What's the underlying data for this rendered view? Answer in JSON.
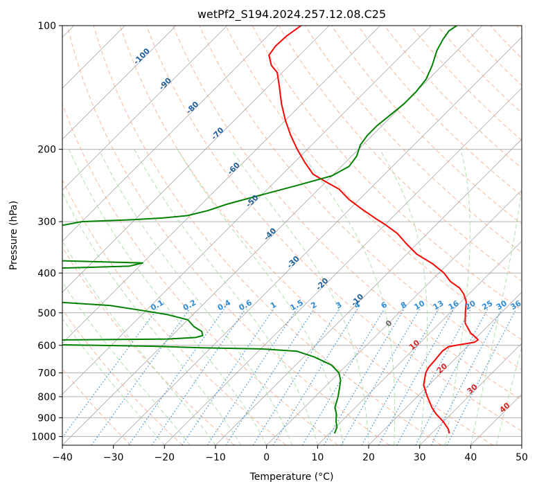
{
  "chart_data": {
    "type": "line",
    "title": "wetPf2_S194.2024.257.12.08.C25",
    "xlabel": "Temperature (°C)",
    "ylabel": "Pressure (hPa)",
    "xlim": [
      -40,
      50
    ],
    "ylim": [
      1050,
      100
    ],
    "y_scale": "log",
    "skew": "skew-T log-p (isotherms skewed 45°)",
    "grid": true,
    "x_ticks": [
      -40,
      -30,
      -20,
      -10,
      0,
      10,
      20,
      30,
      40,
      50
    ],
    "x_tick_labels": [
      "−40",
      "−30",
      "−20",
      "−10",
      "0",
      "10",
      "20",
      "30",
      "40",
      "50"
    ],
    "y_ticks": [
      1000,
      900,
      800,
      700,
      600,
      500,
      400,
      300,
      200,
      100
    ],
    "y_tick_labels": [
      "1000",
      "900",
      "800",
      "700",
      "600",
      "500",
      "400",
      "300",
      "200",
      "100"
    ],
    "colors": {
      "temperature": "#ff0000",
      "dewpoint": "#008000",
      "grid": "#b0b0b0",
      "isotherm": "#999999",
      "dry_adiabat": "#f4a582",
      "moist_adiabat": "#a1d99b",
      "mixing_ratio": "#2e8bd6",
      "dry_adiabat_label": "#1f5f99",
      "moist_adiabat_label": "#d62728",
      "saturated_label": "#666666"
    },
    "series": [
      {
        "points": [
          [
            983,
            33.5
          ],
          [
            960,
            32.5
          ],
          [
            920,
            30.0
          ],
          [
            880,
            27.0
          ],
          [
            850,
            25.0
          ],
          [
            800,
            22.0
          ],
          [
            750,
            19.0
          ],
          [
            700,
            17.0
          ],
          [
            680,
            16.5
          ],
          [
            650,
            16.3
          ],
          [
            620,
            16.0
          ],
          [
            605,
            16.3
          ],
          [
            600,
            17.5
          ],
          [
            590,
            20.5
          ],
          [
            582,
            20.8
          ],
          [
            575,
            20.0
          ],
          [
            560,
            18.0
          ],
          [
            530,
            15.0
          ],
          [
            500,
            13.0
          ],
          [
            470,
            11.0
          ],
          [
            450,
            9.0
          ],
          [
            435,
            7.0
          ],
          [
            420,
            4.0
          ],
          [
            400,
            1.0
          ],
          [
            380,
            -3.0
          ],
          [
            360,
            -8.0
          ],
          [
            340,
            -12.0
          ],
          [
            320,
            -16.0
          ],
          [
            305,
            -20.0
          ],
          [
            295,
            -23.0
          ],
          [
            280,
            -27.5
          ],
          [
            265,
            -32.0
          ],
          [
            250,
            -36.0
          ],
          [
            240,
            -40.0
          ],
          [
            230,
            -44.0
          ],
          [
            215,
            -48.0
          ],
          [
            200,
            -52.0
          ],
          [
            185,
            -56.0
          ],
          [
            170,
            -60.0
          ],
          [
            155,
            -64.0
          ],
          [
            140,
            -68.0
          ],
          [
            130,
            -71.0
          ],
          [
            125,
            -73.5
          ],
          [
            118,
            -76.0
          ],
          [
            112,
            -76.5
          ],
          [
            106,
            -76.3
          ],
          [
            100,
            -75.5
          ]
        ]
      },
      {
        "points": [
          [
            983,
            11.0
          ],
          [
            950,
            10.3
          ],
          [
            920,
            9.0
          ],
          [
            880,
            7.5
          ],
          [
            850,
            6.0
          ],
          [
            800,
            4.5
          ],
          [
            760,
            3.0
          ],
          [
            730,
            1.8
          ],
          [
            700,
            0.0
          ],
          [
            670,
            -3.0
          ],
          [
            640,
            -8.0
          ],
          [
            620,
            -12.5
          ],
          [
            612,
            -20.0
          ],
          [
            608,
            -32.0
          ],
          [
            603,
            -42.0
          ],
          [
            598,
            -60.0
          ],
          [
            592,
            -75.0
          ],
          [
            588,
            -79.0
          ],
          [
            584,
            -78.0
          ],
          [
            582,
            -60.0
          ],
          [
            579,
            -40.0
          ],
          [
            574,
            -35.0
          ],
          [
            568,
            -34.0
          ],
          [
            555,
            -35.0
          ],
          [
            540,
            -37.5
          ],
          [
            520,
            -40.0
          ],
          [
            505,
            -45.0
          ],
          [
            495,
            -50.0
          ],
          [
            480,
            -58.0
          ],
          [
            470,
            -70.0
          ],
          [
            462,
            -95.0
          ],
          [
            460,
            -99.0
          ],
          [
            458,
            -88.0
          ],
          [
            455,
            -85.0
          ],
          [
            450,
            -80.0
          ],
          [
            445,
            -82.0
          ],
          [
            440,
            -95.0
          ],
          [
            436,
            -99.0
          ],
          [
            400,
            -99.0
          ],
          [
            394,
            -90.0
          ],
          [
            385,
            -62.0
          ],
          [
            378,
            -60.0
          ],
          [
            372,
            -82.0
          ],
          [
            368,
            -99.0
          ],
          [
            340,
            -99.0
          ],
          [
            330,
            -95.0
          ],
          [
            318,
            -89.0
          ],
          [
            300,
            -80.0
          ],
          [
            297,
            -71.0
          ],
          [
            294,
            -65.0
          ],
          [
            290,
            -60.5
          ],
          [
            282,
            -57.5
          ],
          [
            272,
            -55.0
          ],
          [
            258,
            -50.0
          ],
          [
            245,
            -45.0
          ],
          [
            232,
            -40.0
          ],
          [
            220,
            -38.5
          ],
          [
            208,
            -39.0
          ],
          [
            195,
            -40.5
          ],
          [
            185,
            -41.0
          ],
          [
            175,
            -41.0
          ],
          [
            165,
            -40.5
          ],
          [
            155,
            -40.0
          ],
          [
            145,
            -40.0
          ],
          [
            135,
            -40.5
          ],
          [
            125,
            -42.0
          ],
          [
            115,
            -44.0
          ],
          [
            108,
            -45.0
          ],
          [
            103,
            -45.5
          ],
          [
            100,
            -45.0
          ]
        ]
      }
    ],
    "mixing_ratio_labels_gkg": [
      "0.1",
      "0.2",
      "0.4",
      "0.6",
      "1",
      "1.5",
      "2",
      "3",
      "4",
      "6",
      "8",
      "10",
      "13",
      "16",
      "20",
      "25",
      "30",
      "36"
    ],
    "dry_adiabat_labels": [
      "-100",
      "-90",
      "-80",
      "-70",
      "-60",
      "-50",
      "-40",
      "-30",
      "-20",
      "-10"
    ],
    "moist_adiabat_labels": [
      "10",
      "20",
      "30",
      "40"
    ],
    "saturated_label": "0"
  }
}
